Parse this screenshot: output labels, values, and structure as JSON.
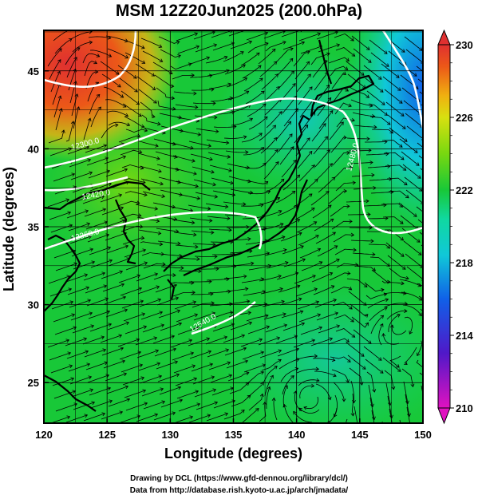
{
  "title": "MSM 12Z20Jun2025 (200.0hPa)",
  "xaxis": {
    "label": "Longitude (degrees)",
    "range": [
      120,
      150
    ],
    "ticks": [
      "120",
      "125",
      "130",
      "135",
      "140",
      "145",
      "150"
    ]
  },
  "yaxis": {
    "label": "Latitude  (degrees)",
    "range": [
      22.4,
      47.6
    ],
    "ticks": [
      "25",
      "30",
      "35",
      "40",
      "45"
    ]
  },
  "colorbar": {
    "range": [
      210,
      230
    ],
    "ticks": [
      "210",
      "214",
      "218",
      "222",
      "226",
      "230"
    ],
    "colors": {
      "c210": "#e012c0",
      "c213": "#5018c8",
      "c216": "#1060e8",
      "c218": "#10c8d8",
      "c220": "#10d8a0",
      "c222": "#18c838",
      "c224": "#78d810",
      "c226": "#d8e010",
      "c227": "#f0b010",
      "c229": "#ec5818",
      "c230": "#e03030"
    }
  },
  "contour_labels": [
    "12420.0",
    "12480.0",
    "12300.0",
    "12360.0",
    "12540.0"
  ],
  "credits": {
    "line1": "Drawing by DCL (https://www.gfd-dennou.org/library/dcl/)",
    "line2": "Data from http://database.rish.kyoto-u.ac.jp/arch/jmadata/"
  }
}
